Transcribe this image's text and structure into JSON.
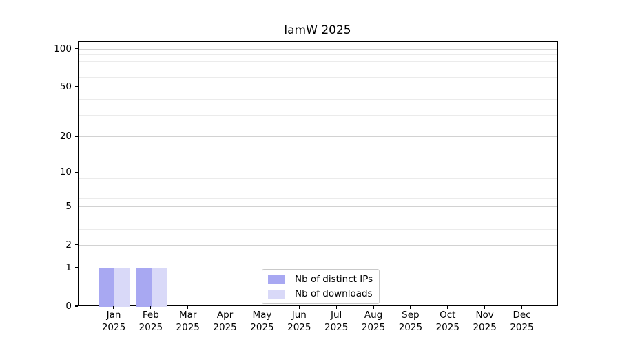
{
  "chart_data": {
    "type": "bar",
    "title": "lamW 2025",
    "xlabel": "",
    "ylabel": "",
    "months": [
      "Jan",
      "Feb",
      "Mar",
      "Apr",
      "May",
      "Jun",
      "Jul",
      "Aug",
      "Sep",
      "Oct",
      "Nov",
      "Dec"
    ],
    "year_label": "2025",
    "series": [
      {
        "name": "Nb of distinct IPs",
        "color": "#a8a8f2",
        "values": [
          1,
          1,
          0,
          0,
          0,
          0,
          0,
          0,
          0,
          0,
          0,
          0
        ]
      },
      {
        "name": "Nb of downloads",
        "color": "#d9d9f8",
        "values": [
          1,
          1,
          0,
          0,
          0,
          0,
          0,
          0,
          0,
          0,
          0,
          0
        ]
      }
    ],
    "y_axis": {
      "scale": "log1p",
      "major_ticks": [
        0,
        1,
        2,
        5,
        10,
        20,
        50,
        100
      ],
      "minor_gridlines": [
        3,
        4,
        6,
        7,
        8,
        9,
        30,
        40,
        60,
        70,
        80,
        90
      ],
      "ylim": [
        0,
        114
      ]
    },
    "legend_position": "lower center",
    "grid": "horizontal",
    "colors": {
      "grid_major": "#d2d2d2",
      "grid_minor": "#ebebeb",
      "spine": "#000000",
      "background": "#ffffff"
    }
  }
}
